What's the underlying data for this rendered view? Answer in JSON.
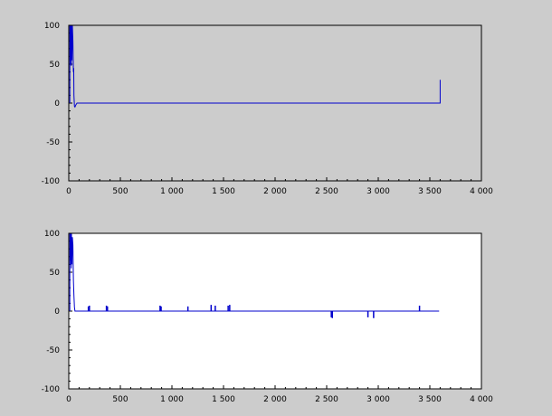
{
  "figure": {
    "background": "#cccccc"
  },
  "chart_data": [
    {
      "type": "line",
      "title": "",
      "xlabel": "",
      "ylabel": "",
      "xlim": [
        0,
        4000
      ],
      "ylim": [
        -100,
        100
      ],
      "plot_background": "#cccccc",
      "line_color": "#0000cc",
      "grid": false,
      "x_ticks": [
        0,
        500,
        1000,
        1500,
        2000,
        2500,
        3000,
        3500,
        4000
      ],
      "x_tick_labels": [
        "0",
        "500",
        "1 000",
        "1 500",
        "2 000",
        "2 500",
        "3 000",
        "3 500",
        "4 000"
      ],
      "y_ticks": [
        100,
        50,
        0,
        -50,
        -100
      ],
      "y_tick_labels": [
        "100",
        "50",
        "0",
        "-50",
        "-100"
      ],
      "series": [
        {
          "x": [
            10,
            10,
            12,
            14,
            16,
            18,
            20,
            22,
            24,
            26,
            30,
            35,
            40,
            45,
            48,
            50,
            55,
            60,
            70,
            80,
            3590,
            3590,
            3600,
            3600,
            3600
          ],
          "y": [
            0,
            100,
            60,
            100,
            55,
            100,
            50,
            100,
            48,
            100,
            55,
            100,
            80,
            40,
            45,
            10,
            -4,
            -5,
            -2,
            0,
            0,
            0,
            0,
            30,
            0
          ]
        }
      ]
    },
    {
      "type": "line",
      "title": "",
      "xlabel": "",
      "ylabel": "",
      "xlim": [
        0,
        4000
      ],
      "ylim": [
        -100,
        100
      ],
      "plot_background": "#ffffff",
      "line_color": "#0000cc",
      "grid": false,
      "x_ticks": [
        0,
        500,
        1000,
        1500,
        2000,
        2500,
        3000,
        3500,
        4000
      ],
      "x_tick_labels": [
        "0",
        "500",
        "1 000",
        "1 500",
        "2 000",
        "2 500",
        "3 000",
        "3 500",
        "4 000"
      ],
      "y_ticks": [
        100,
        50,
        0,
        -50,
        -100
      ],
      "y_tick_labels": [
        "100",
        "50",
        "0",
        "-50",
        "-100"
      ],
      "series": [
        {
          "x": [
            10,
            10,
            12,
            14,
            16,
            18,
            20,
            22,
            24,
            26,
            30,
            35,
            40,
            45,
            50,
            55,
            60,
            3590
          ],
          "y": [
            0,
            100,
            70,
            100,
            65,
            100,
            60,
            100,
            55,
            100,
            60,
            95,
            85,
            40,
            20,
            5,
            0,
            0
          ]
        }
      ],
      "spikes": [
        {
          "x": 190,
          "y": 6
        },
        {
          "x": 200,
          "y": 7
        },
        {
          "x": 365,
          "y": 7
        },
        {
          "x": 375,
          "y": 6
        },
        {
          "x": 885,
          "y": 7
        },
        {
          "x": 895,
          "y": 6
        },
        {
          "x": 1155,
          "y": 6
        },
        {
          "x": 1380,
          "y": 8
        },
        {
          "x": 1420,
          "y": 7
        },
        {
          "x": 1545,
          "y": 7
        },
        {
          "x": 1560,
          "y": 8
        },
        {
          "x": 2545,
          "y": -8
        },
        {
          "x": 2555,
          "y": -9
        },
        {
          "x": 2900,
          "y": -8
        },
        {
          "x": 2955,
          "y": -9
        },
        {
          "x": 3400,
          "y": 7
        }
      ]
    }
  ]
}
